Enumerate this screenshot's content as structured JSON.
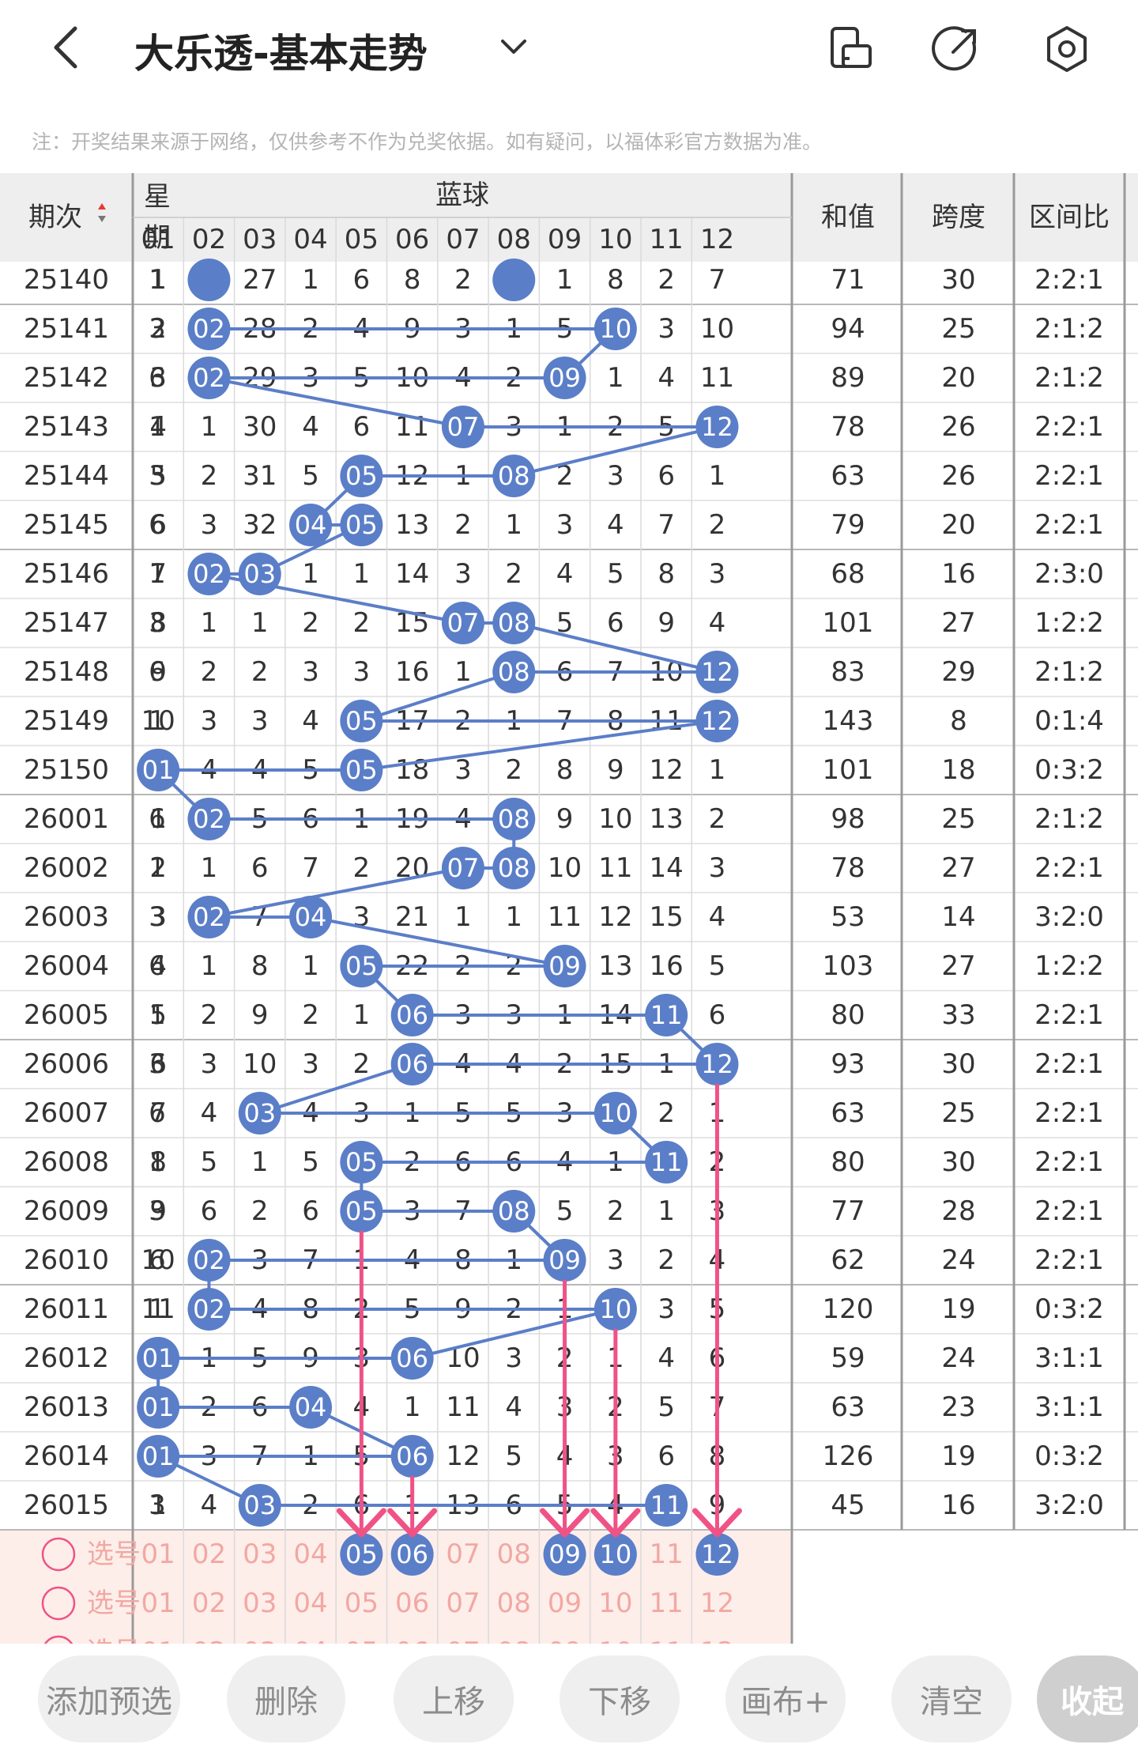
{
  "header": {
    "title": "大乐透-基本走势",
    "note": "注：开奖结果来源于网络，仅供参考不作为兑奖依据。如有疑问，以福体彩官方数据为准。",
    "icons": [
      "back-arrow-icon",
      "chevron-down-icon",
      "rotate-screen-icon",
      "share-icon",
      "settings-gear-icon"
    ]
  },
  "table": {
    "col_period": "期次",
    "col_weekday": "星期",
    "col_weekday_lines": [
      "星",
      "期"
    ],
    "blue_group": "蓝球",
    "blue_numbers": [
      "01",
      "02",
      "03",
      "04",
      "05",
      "06",
      "07",
      "08",
      "09",
      "10",
      "11",
      "12"
    ],
    "col_sum": "和值",
    "col_span": "跨度",
    "col_ratio": "区间比",
    "partial_row": {
      "period": "25140",
      "weekday": "1",
      "cells": [
        "1",
        "",
        "27",
        "1",
        "6",
        "8",
        "2",
        "",
        "1",
        "8",
        "2",
        "7"
      ],
      "sum": "71",
      "span": "30",
      "ratio": "2:2:1"
    },
    "rows": [
      {
        "period": "25141",
        "weekday": "3",
        "cells": [
          "2",
          "02",
          "28",
          "2",
          "4",
          "9",
          "3",
          "1",
          "5",
          "10",
          "3",
          "10"
        ],
        "sum": "94",
        "span": "25",
        "ratio": "2:1:2"
      },
      {
        "period": "25142",
        "weekday": "6",
        "cells": [
          "3",
          "02",
          "29",
          "3",
          "5",
          "10",
          "4",
          "2",
          "09",
          "1",
          "4",
          "11"
        ],
        "sum": "89",
        "span": "20",
        "ratio": "2:1:2"
      },
      {
        "period": "25143",
        "weekday": "1",
        "cells": [
          "4",
          "1",
          "30",
          "4",
          "6",
          "11",
          "07",
          "3",
          "1",
          "2",
          "5",
          "12"
        ],
        "sum": "78",
        "span": "26",
        "ratio": "2:2:1"
      },
      {
        "period": "25144",
        "weekday": "3",
        "cells": [
          "5",
          "2",
          "31",
          "5",
          "05",
          "12",
          "1",
          "08",
          "2",
          "3",
          "6",
          "1"
        ],
        "sum": "63",
        "span": "26",
        "ratio": "2:2:1"
      },
      {
        "period": "25145",
        "weekday": "6",
        "cells": [
          "6",
          "3",
          "32",
          "04",
          "05",
          "13",
          "2",
          "1",
          "3",
          "4",
          "7",
          "2"
        ],
        "sum": "79",
        "span": "20",
        "ratio": "2:2:1"
      },
      {
        "period": "25146",
        "weekday": "1",
        "cells": [
          "7",
          "02",
          "03",
          "1",
          "1",
          "14",
          "3",
          "2",
          "4",
          "5",
          "8",
          "3"
        ],
        "sum": "68",
        "span": "16",
        "ratio": "2:3:0"
      },
      {
        "period": "25147",
        "weekday": "3",
        "cells": [
          "8",
          "1",
          "1",
          "2",
          "2",
          "15",
          "07",
          "08",
          "5",
          "6",
          "9",
          "4"
        ],
        "sum": "101",
        "span": "27",
        "ratio": "1:2:2"
      },
      {
        "period": "25148",
        "weekday": "6",
        "cells": [
          "9",
          "2",
          "2",
          "3",
          "3",
          "16",
          "1",
          "08",
          "6",
          "7",
          "10",
          "12"
        ],
        "sum": "83",
        "span": "29",
        "ratio": "2:1:2"
      },
      {
        "period": "25149",
        "weekday": "1",
        "cells": [
          "10",
          "3",
          "3",
          "4",
          "05",
          "17",
          "2",
          "1",
          "7",
          "8",
          "11",
          "12"
        ],
        "sum": "143",
        "span": "8",
        "ratio": "0:1:4"
      },
      {
        "period": "25150",
        "weekday": "3",
        "cells": [
          "01",
          "4",
          "4",
          "5",
          "05",
          "18",
          "3",
          "2",
          "8",
          "9",
          "12",
          "1"
        ],
        "sum": "101",
        "span": "18",
        "ratio": "0:3:2"
      },
      {
        "period": "26001",
        "weekday": "6",
        "cells": [
          "1",
          "02",
          "5",
          "6",
          "1",
          "19",
          "4",
          "08",
          "9",
          "10",
          "13",
          "2"
        ],
        "sum": "98",
        "span": "25",
        "ratio": "2:1:2"
      },
      {
        "period": "26002",
        "weekday": "1",
        "cells": [
          "2",
          "1",
          "6",
          "7",
          "2",
          "20",
          "07",
          "08",
          "10",
          "11",
          "14",
          "3"
        ],
        "sum": "78",
        "span": "27",
        "ratio": "2:2:1"
      },
      {
        "period": "26003",
        "weekday": "3",
        "cells": [
          "3",
          "02",
          "7",
          "04",
          "3",
          "21",
          "1",
          "1",
          "11",
          "12",
          "15",
          "4"
        ],
        "sum": "53",
        "span": "14",
        "ratio": "3:2:0"
      },
      {
        "period": "26004",
        "weekday": "6",
        "cells": [
          "4",
          "1",
          "8",
          "1",
          "05",
          "22",
          "2",
          "2",
          "09",
          "13",
          "16",
          "5"
        ],
        "sum": "103",
        "span": "27",
        "ratio": "1:2:2"
      },
      {
        "period": "26005",
        "weekday": "1",
        "cells": [
          "5",
          "2",
          "9",
          "2",
          "1",
          "06",
          "3",
          "3",
          "1",
          "14",
          "11",
          "6"
        ],
        "sum": "80",
        "span": "33",
        "ratio": "2:2:1"
      },
      {
        "period": "26006",
        "weekday": "3",
        "cells": [
          "6",
          "3",
          "10",
          "3",
          "2",
          "06",
          "4",
          "4",
          "2",
          "15",
          "1",
          "12"
        ],
        "sum": "93",
        "span": "30",
        "ratio": "2:2:1"
      },
      {
        "period": "26007",
        "weekday": "6",
        "cells": [
          "7",
          "4",
          "03",
          "4",
          "3",
          "1",
          "5",
          "5",
          "3",
          "10",
          "2",
          "1"
        ],
        "sum": "63",
        "span": "25",
        "ratio": "2:2:1"
      },
      {
        "period": "26008",
        "weekday": "1",
        "cells": [
          "8",
          "5",
          "1",
          "5",
          "05",
          "2",
          "6",
          "6",
          "4",
          "1",
          "11",
          "2"
        ],
        "sum": "80",
        "span": "30",
        "ratio": "2:2:1"
      },
      {
        "period": "26009",
        "weekday": "3",
        "cells": [
          "9",
          "6",
          "2",
          "6",
          "05",
          "3",
          "7",
          "08",
          "5",
          "2",
          "1",
          "3"
        ],
        "sum": "77",
        "span": "28",
        "ratio": "2:2:1"
      },
      {
        "period": "26010",
        "weekday": "6",
        "cells": [
          "10",
          "02",
          "3",
          "7",
          "1",
          "4",
          "8",
          "1",
          "09",
          "3",
          "2",
          "4"
        ],
        "sum": "62",
        "span": "24",
        "ratio": "2:2:1"
      },
      {
        "period": "26011",
        "weekday": "1",
        "cells": [
          "11",
          "02",
          "4",
          "8",
          "2",
          "5",
          "9",
          "2",
          "1",
          "10",
          "3",
          "5"
        ],
        "sum": "120",
        "span": "19",
        "ratio": "0:3:2"
      },
      {
        "period": "26012",
        "weekday": "3",
        "cells": [
          "01",
          "1",
          "5",
          "9",
          "3",
          "06",
          "10",
          "3",
          "2",
          "1",
          "4",
          "6"
        ],
        "sum": "59",
        "span": "24",
        "ratio": "3:1:1"
      },
      {
        "period": "26013",
        "weekday": "6",
        "cells": [
          "01",
          "2",
          "6",
          "04",
          "4",
          "1",
          "11",
          "4",
          "3",
          "2",
          "5",
          "7"
        ],
        "sum": "63",
        "span": "23",
        "ratio": "3:1:1"
      },
      {
        "period": "26014",
        "weekday": "1",
        "cells": [
          "01",
          "3",
          "7",
          "1",
          "5",
          "06",
          "12",
          "5",
          "4",
          "3",
          "6",
          "8"
        ],
        "sum": "126",
        "span": "19",
        "ratio": "0:3:2"
      },
      {
        "period": "26015",
        "weekday": "3",
        "cells": [
          "1",
          "4",
          "03",
          "2",
          "6",
          "1",
          "13",
          "6",
          "5",
          "4",
          "11",
          "9"
        ],
        "sum": "45",
        "span": "16",
        "ratio": "3:2:0"
      }
    ],
    "hit_cells": [
      [
        0,
        1
      ],
      [
        0,
        9
      ],
      [
        1,
        1
      ],
      [
        1,
        8
      ],
      [
        2,
        6
      ],
      [
        2,
        11
      ],
      [
        3,
        4
      ],
      [
        3,
        7
      ],
      [
        4,
        3
      ],
      [
        4,
        4
      ],
      [
        5,
        1
      ],
      [
        5,
        2
      ],
      [
        6,
        6
      ],
      [
        6,
        7
      ],
      [
        7,
        7
      ],
      [
        7,
        11
      ],
      [
        8,
        4
      ],
      [
        8,
        11
      ],
      [
        9,
        0
      ],
      [
        9,
        4
      ],
      [
        10,
        1
      ],
      [
        10,
        7
      ],
      [
        11,
        6
      ],
      [
        11,
        7
      ],
      [
        12,
        1
      ],
      [
        12,
        3
      ],
      [
        13,
        4
      ],
      [
        13,
        8
      ],
      [
        14,
        5
      ],
      [
        14,
        10
      ],
      [
        15,
        5
      ],
      [
        15,
        11
      ],
      [
        16,
        2
      ],
      [
        16,
        9
      ],
      [
        17,
        4
      ],
      [
        17,
        10
      ],
      [
        18,
        4
      ],
      [
        18,
        7
      ],
      [
        19,
        1
      ],
      [
        19,
        8
      ],
      [
        20,
        1
      ],
      [
        20,
        9
      ],
      [
        21,
        0
      ],
      [
        21,
        5
      ],
      [
        22,
        0
      ],
      [
        22,
        3
      ],
      [
        23,
        0
      ],
      [
        23,
        5
      ],
      [
        24,
        2
      ],
      [
        24,
        10
      ]
    ],
    "hidden_cells": [
      [
        0,
        1
      ],
      [
        0,
        7
      ]
    ],
    "select_rows": [
      {
        "label": "选号",
        "selected": [
          "05",
          "06",
          "09",
          "10",
          "12"
        ]
      },
      {
        "label": "选号",
        "selected": []
      },
      {
        "label": "选号",
        "selected": []
      }
    ],
    "colors": {
      "ball": "#5b7ec8",
      "line": "#5b7ec8",
      "arrow": "#f05286",
      "select_bg": "#fdeeea",
      "select_text": "#f2a8a3",
      "header_bg": "#eeeeee",
      "sort_up": "#e53935"
    }
  },
  "buttons": [
    {
      "label": "添加预选",
      "name": "add-preselect-button"
    },
    {
      "label": "删除",
      "name": "delete-button"
    },
    {
      "label": "上移",
      "name": "move-up-button"
    },
    {
      "label": "下移",
      "name": "move-down-button"
    },
    {
      "label": "画布+",
      "name": "canvas-plus-button"
    },
    {
      "label": "清空",
      "name": "clear-button"
    },
    {
      "label": "收起",
      "name": "collapse-button"
    }
  ]
}
